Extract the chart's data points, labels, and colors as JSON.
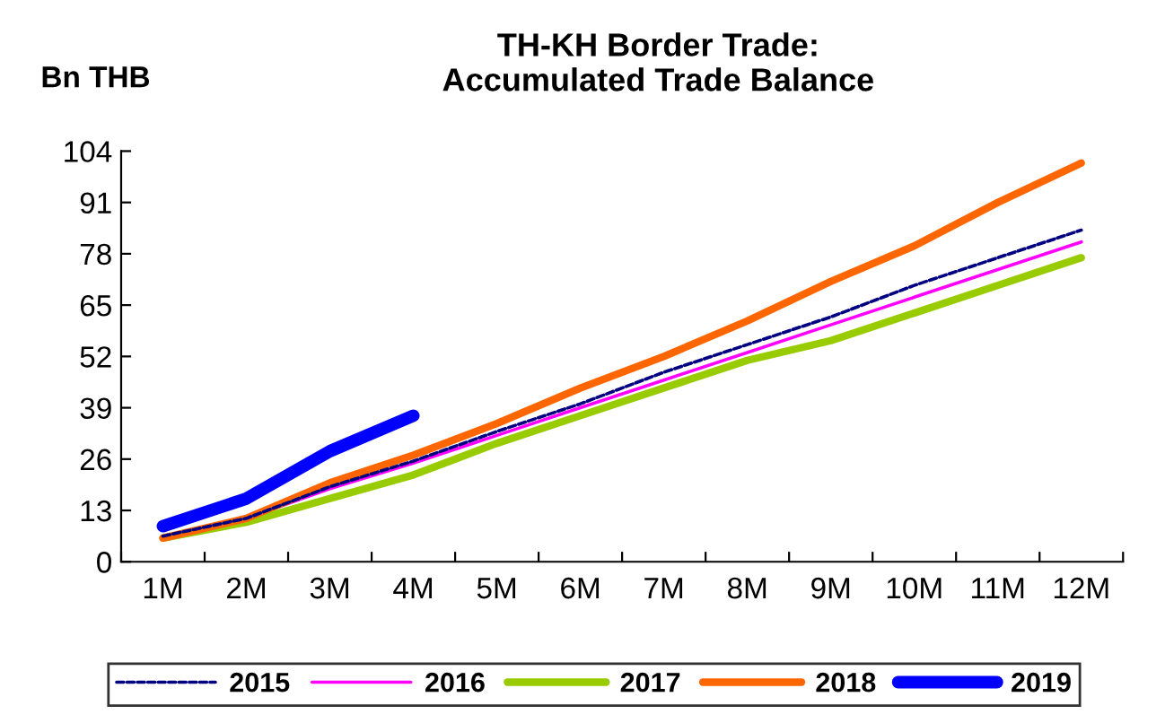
{
  "chart_data": {
    "type": "line",
    "title": "TH-KH Border Trade:\nAccumulated Trade Balance",
    "ylabel": "Bn THB",
    "categories": [
      "1M",
      "2M",
      "3M",
      "4M",
      "5M",
      "6M",
      "7M",
      "8M",
      "9M",
      "10M",
      "11M",
      "12M"
    ],
    "ylim": [
      0,
      104
    ],
    "yticks": [
      0,
      13,
      26,
      39,
      52,
      65,
      78,
      91,
      104
    ],
    "grid": false,
    "legend": "bottom",
    "series": [
      {
        "name": "2015",
        "color": "#000080",
        "line_style": "dashed",
        "values": [
          6.5,
          11,
          19,
          25.5,
          33,
          40,
          48,
          55,
          62,
          70,
          77,
          84
        ]
      },
      {
        "name": "2016",
        "color": "#ff00ff",
        "line_style": "solid",
        "values": [
          6.5,
          11,
          18.5,
          25,
          32,
          39,
          46,
          53,
          60,
          67,
          74,
          81
        ]
      },
      {
        "name": "2017",
        "color": "#99cc00",
        "line_style": "solid",
        "values": [
          6,
          10,
          16,
          22,
          30,
          37,
          44,
          51,
          56,
          63,
          70,
          77
        ]
      },
      {
        "name": "2018",
        "color": "#ff6600",
        "line_style": "solid",
        "values": [
          6,
          11,
          20,
          27,
          35,
          44,
          52,
          61,
          71,
          80,
          91,
          101
        ]
      },
      {
        "name": "2019",
        "color": "#0000ff",
        "line_style": "solid",
        "values": [
          9,
          16,
          28,
          37,
          null,
          null,
          null,
          null,
          null,
          null,
          null,
          null
        ]
      }
    ]
  }
}
